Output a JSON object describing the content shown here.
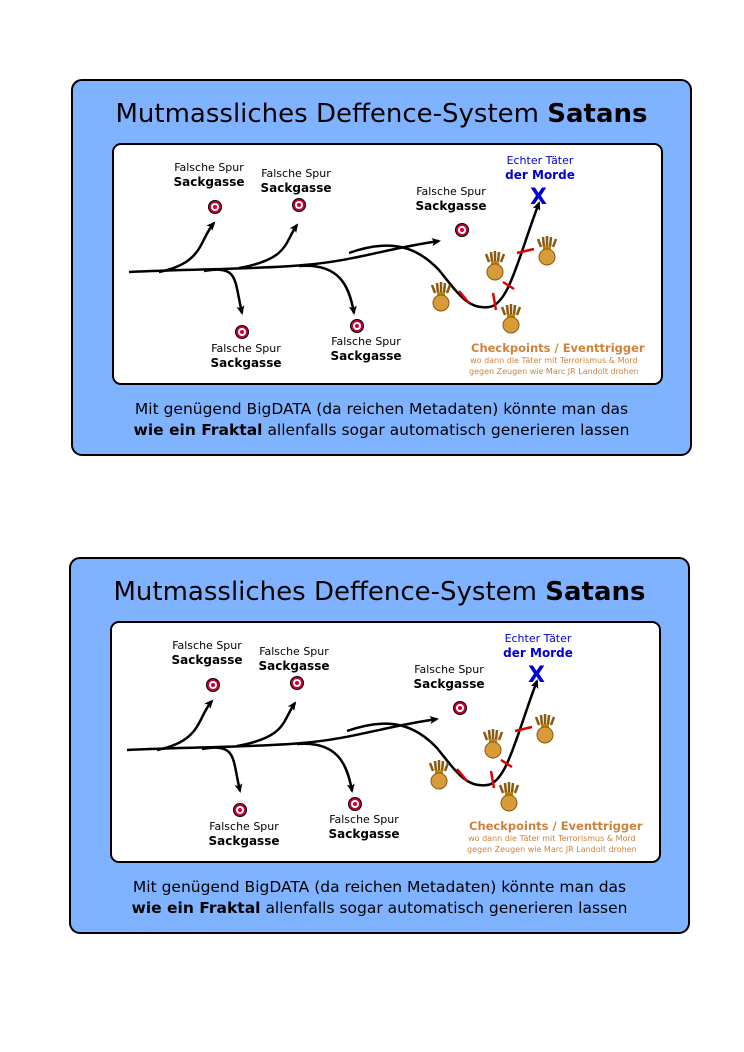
{
  "cards": [
    {
      "title_prefix": "Mutmassliches Deffence-System",
      "title_bold": "Satans",
      "dead_end_line1": "Falsche Spur",
      "dead_end_line2": "Sackgasse",
      "target_line1": "Echter Täter",
      "target_line2": "der Morde",
      "target_mark": "X",
      "checkpoints_title": "Checkpoints / Eventtrigger",
      "checkpoints_desc_line1": "wo dann die Täter mit Terrorismus & Mord",
      "checkpoints_desc_line2": "gegen Zeugen wie Marc JR Landolt drohen",
      "footer_line1": "Mit genügend BigDATA (da reichen Metadaten) könnte man das",
      "footer_bold": "wie ein Fraktal",
      "footer_line2_rest": "allenfalls sogar automatisch generieren lassen"
    },
    {
      "title_prefix": "Mutmassliches Deffence-System",
      "title_bold": "Satans",
      "dead_end_line1": "Falsche Spur",
      "dead_end_line2": "Sackgasse",
      "target_line1": "Echter Täter",
      "target_line2": "der Morde",
      "target_mark": "X",
      "checkpoints_title": "Checkpoints / Eventtrigger",
      "checkpoints_desc_line1": "wo dann die Täter mit Terrorismus & Mord",
      "checkpoints_desc_line2": "gegen Zeugen wie Marc JR Landolt drohen",
      "footer_line1": "Mit genügend BigDATA (da reichen Metadaten) könnte man das",
      "footer_bold": "wie ein Fraktal",
      "footer_line2_rest": "allenfalls sogar automatisch generieren lassen"
    }
  ],
  "colors": {
    "card_background": "#80b3ff",
    "target_blue": "#0000d4",
    "checkpoint_orange": "#d0823a",
    "checkpoint_marker_red": "#e00000",
    "target_ring": "#cc0033"
  },
  "icons": {
    "dead_end": "target-icon",
    "checkpoint": "grenade-icon",
    "checkpoint_barrier": "barrier-icon"
  }
}
